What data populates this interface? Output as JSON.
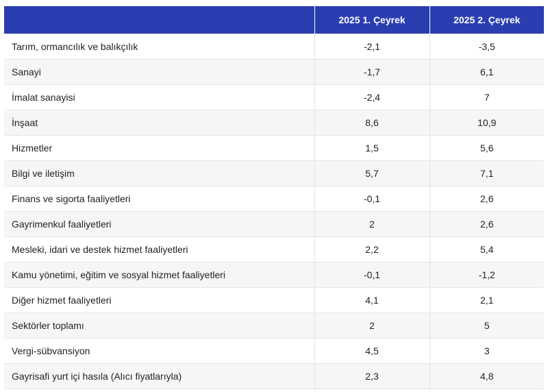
{
  "table": {
    "headers": [
      "",
      "2025 1. Çeyrek",
      "2025 2. Çeyrek"
    ],
    "rows": [
      {
        "label": "Tarım, ormancılık ve balıkçılık",
        "q1": "-2,1",
        "q2": "-3,5"
      },
      {
        "label": "Sanayi",
        "q1": "-1,7",
        "q2": "6,1"
      },
      {
        "label": "İmalat sanayisi",
        "q1": "-2,4",
        "q2": "7"
      },
      {
        "label": "İnşaat",
        "q1": "8,6",
        "q2": "10,9"
      },
      {
        "label": "Hizmetler",
        "q1": "1,5",
        "q2": "5,6"
      },
      {
        "label": "Bilgi ve iletişim",
        "q1": "5,7",
        "q2": "7,1"
      },
      {
        "label": "Finans ve sigorta faaliyetleri",
        "q1": "-0,1",
        "q2": "2,6"
      },
      {
        "label": "Gayrimenkul faaliyetleri",
        "q1": "2",
        "q2": "2,6"
      },
      {
        "label": "Mesleki, idari ve destek hizmet faaliyetleri",
        "q1": "2,2",
        "q2": "5,4"
      },
      {
        "label": "Kamu yönetimi, eğitim ve sosyal hizmet faaliyetleri",
        "q1": "-0,1",
        "q2": "-1,2"
      },
      {
        "label": "Diğer hizmet faaliyetleri",
        "q1": "4,1",
        "q2": "2,1"
      },
      {
        "label": "Sektörler toplamı",
        "q1": "2",
        "q2": "5"
      },
      {
        "label": "Vergi-sübvansiyon",
        "q1": "4,5",
        "q2": "3"
      },
      {
        "label": "Gayrisafi yurt içi hasıla (Alıcı fiyatlarıyla)",
        "q1": "2,3",
        "q2": "4,8"
      }
    ]
  },
  "colors": {
    "header_bg": "#2a3db1",
    "header_text": "#ffffff",
    "stripe": "#f6f6f6"
  }
}
